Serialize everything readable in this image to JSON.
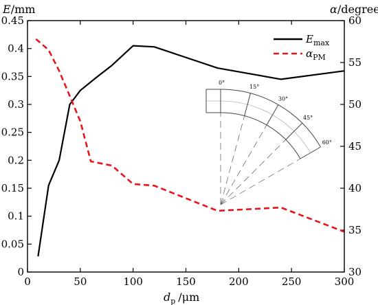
{
  "chart_data": {
    "type": "line",
    "xlabel": "d_p /μm",
    "xlabel_main": "d",
    "xlabel_sub": "p",
    "xlabel_unit": "/μm",
    "ylabel_left": "E/mm",
    "ylabel_left_main": "E",
    "ylabel_left_unit": "/mm",
    "ylabel_right": "α/degree",
    "ylabel_right_main": "α",
    "ylabel_right_unit": "/degree",
    "xlim": [
      0,
      300
    ],
    "ylim_left": [
      0,
      0.45
    ],
    "ylim_right": [
      30,
      60
    ],
    "xticks": [
      0,
      50,
      100,
      150,
      200,
      250,
      300
    ],
    "yticks_left": [
      "0",
      "0.05",
      "0.1",
      "0.15",
      "0.2",
      "0.25",
      "0.3",
      "0.35",
      "0.4",
      "0.45"
    ],
    "yticks_right": [
      "30",
      "35",
      "40",
      "45",
      "50",
      "55",
      "60"
    ],
    "legend_position": "top-right",
    "series": [
      {
        "name": "E_max",
        "legend_main": "E",
        "legend_sub": "max",
        "axis": "left",
        "color": "#000000",
        "style": "solid",
        "x": [
          10,
          20,
          30,
          40,
          50,
          65,
          80,
          100,
          120,
          180,
          240,
          300
        ],
        "y": [
          0.028,
          0.155,
          0.2,
          0.3,
          0.325,
          0.348,
          0.37,
          0.405,
          0.403,
          0.365,
          0.345,
          0.36
        ]
      },
      {
        "name": "α_PM",
        "legend_main": "α",
        "legend_sub": "PM",
        "axis": "right",
        "color": "#e8141b",
        "style": "dashed",
        "x": [
          8,
          20,
          30,
          40,
          50,
          60,
          80,
          100,
          120,
          180,
          240,
          300
        ],
        "y": [
          57.8,
          56.5,
          54,
          51,
          48,
          43.2,
          42.7,
          40.5,
          40.3,
          37.3,
          37.7,
          34.8
        ]
      }
    ],
    "inset": {
      "angle_labels": [
        "0°",
        "15°",
        "30°",
        "45°",
        "60°"
      ]
    }
  }
}
